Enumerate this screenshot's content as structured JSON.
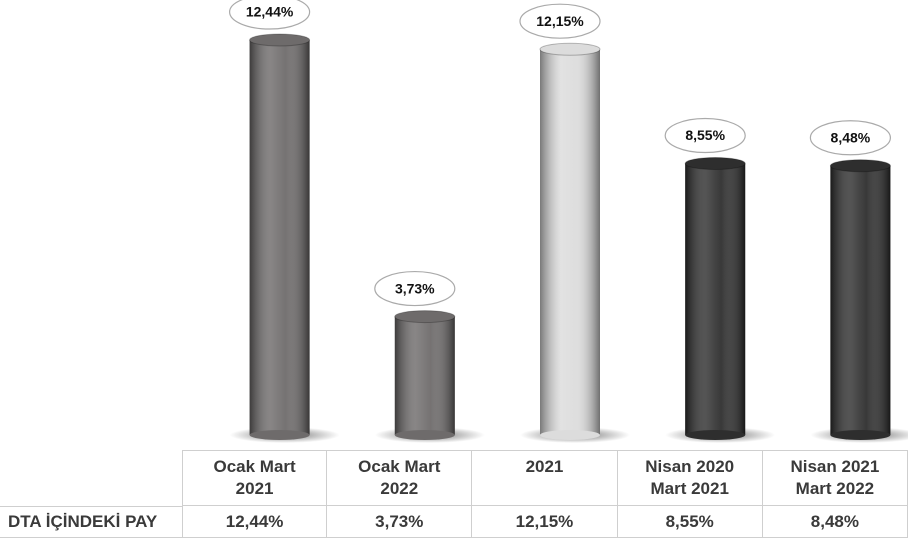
{
  "chart_data": {
    "type": "bar",
    "categories": [
      "Ocak Mart 2021",
      "Ocak Mart 2022",
      "2021",
      "Nisan 2020 Mart 2021",
      "Nisan 2021 Mart 2022"
    ],
    "values": [
      12.44,
      3.73,
      12.15,
      8.55,
      8.48
    ],
    "value_labels": [
      "12,44%",
      "3,73%",
      "12,15%",
      "8,55%",
      "8,48%"
    ],
    "colors": [
      "#6e6b6b",
      "#6e6b6b",
      "#dcdcdc",
      "#2e2e2e",
      "#2e2e2e"
    ],
    "row_label": "DTA İÇİNDEKİ PAY"
  }
}
